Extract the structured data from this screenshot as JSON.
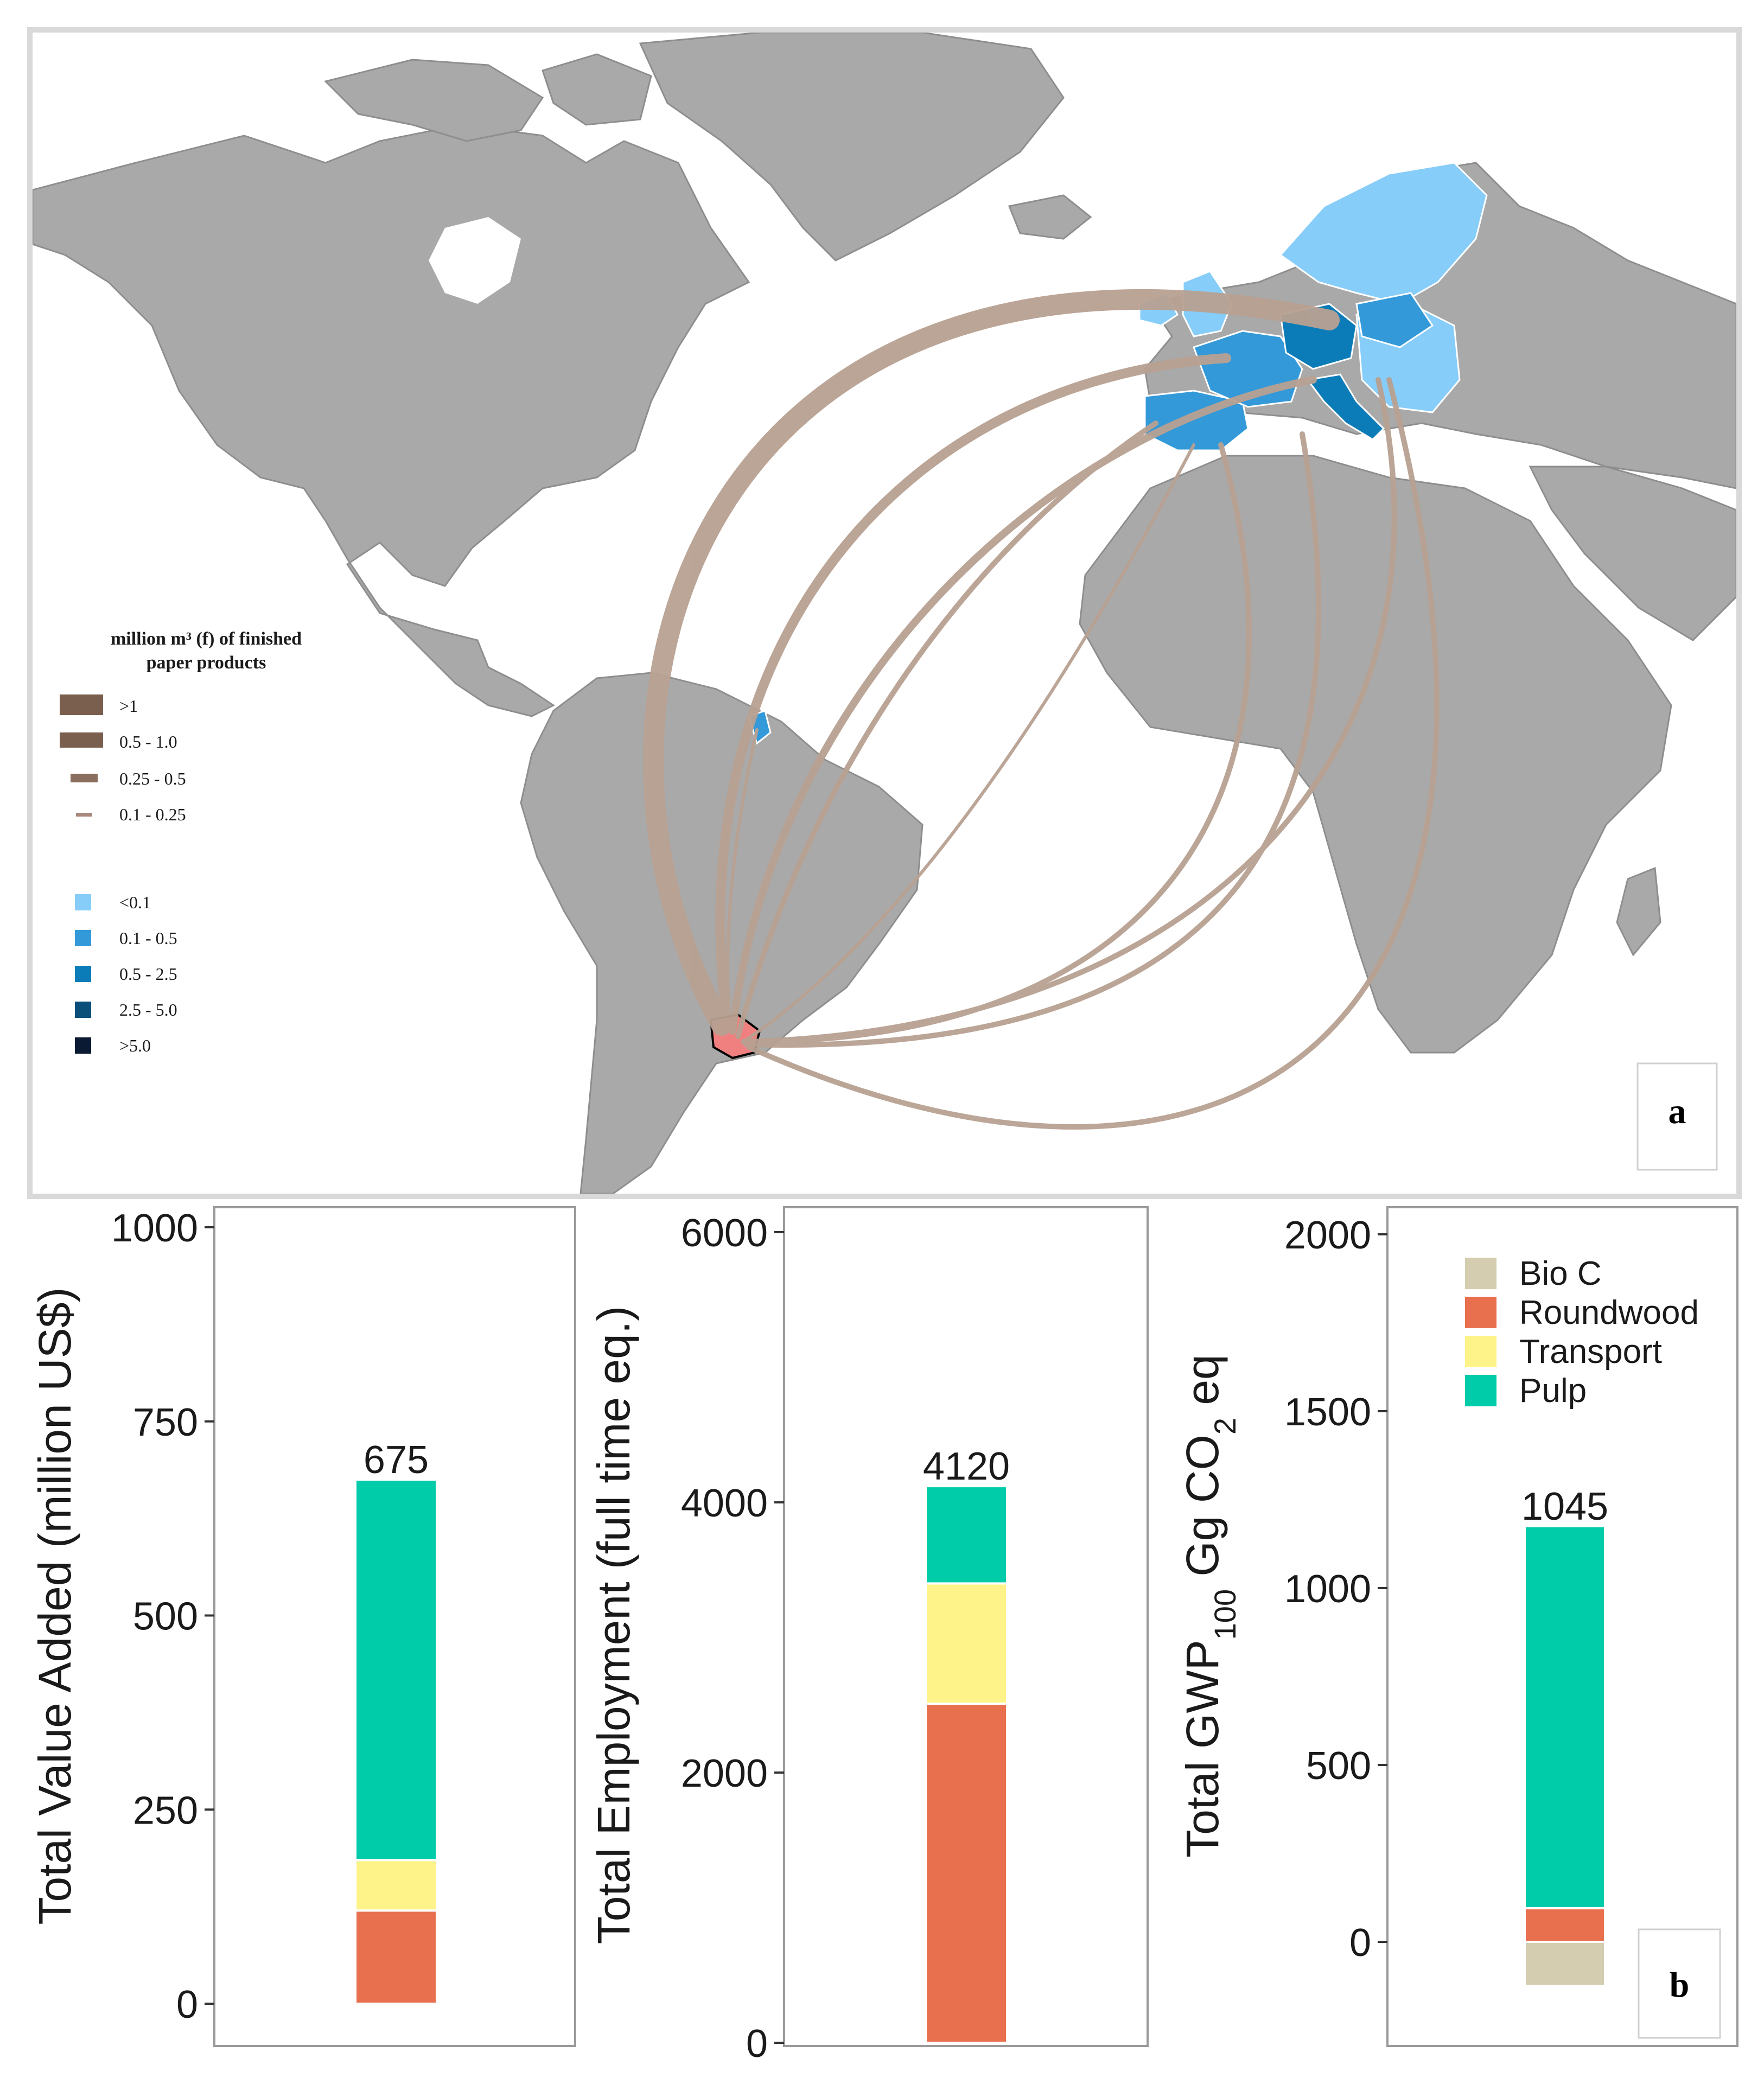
{
  "map": {
    "panel_label": "a",
    "legend_flow": {
      "title_line1": "million m³ (f) of finished",
      "title_line2": "paper products",
      "items": [
        {
          "label": ">1",
          "color": "#7a5f4f"
        },
        {
          "label": "0.5 - 1.0",
          "color": "#7a5f4f"
        },
        {
          "label": "0.25 - 0.5",
          "color": "#8a6f5f"
        },
        {
          "label": "0.1 - 0.25",
          "color": "#a8887a"
        }
      ]
    },
    "legend_fill": {
      "items": [
        {
          "label": "<0.1",
          "color": "#87cdf9"
        },
        {
          "label": "0.1 - 0.5",
          "color": "#3399d9"
        },
        {
          "label": "0.5 - 2.5",
          "color": "#0b7cb7"
        },
        {
          "label": "2.5 - 5.0",
          "color": "#0a4f7a"
        },
        {
          "label": ">5.0",
          "color": "#0a1a33"
        }
      ]
    },
    "colors": {
      "land": "#a9a9a9",
      "ocean": "#ffffff",
      "flow": "#b8a192",
      "origin": "#f08080"
    }
  },
  "panel_b_label": "b",
  "chart_data": [
    {
      "type": "bar",
      "stacked": true,
      "ylabel": "Total Value Added (million US$)",
      "ylim": [
        0,
        1000
      ],
      "yticks": [
        "0",
        "250",
        "500",
        "750",
        "1000"
      ],
      "total_label": "675",
      "series": [
        {
          "name": "Roundwood",
          "color": "#e8704e",
          "values": [
            120
          ]
        },
        {
          "name": "Transport",
          "color": "#fdf388",
          "values": [
            65
          ]
        },
        {
          "name": "Pulp",
          "color": "#00cca9",
          "values": [
            490
          ]
        }
      ]
    },
    {
      "type": "bar",
      "stacked": true,
      "ylabel": "Total Employment (full time eq.)",
      "ylim": [
        0,
        6000
      ],
      "yticks": [
        "0",
        "2000",
        "4000",
        "6000"
      ],
      "total_label": "4120",
      "series": [
        {
          "name": "Roundwood",
          "color": "#e8704e",
          "values": [
            2510
          ]
        },
        {
          "name": "Transport",
          "color": "#fdf388",
          "values": [
            890
          ]
        },
        {
          "name": "Pulp",
          "color": "#00cca9",
          "values": [
            720
          ]
        }
      ]
    },
    {
      "type": "bar",
      "stacked": true,
      "ylabel_parts": [
        "Total GWP",
        "100",
        " Gg CO",
        "2",
        " eq"
      ],
      "ylim": [
        -150,
        2000
      ],
      "yticks": [
        "0",
        "500",
        "1000",
        "1500",
        "2000"
      ],
      "total_label": "1045",
      "series": [
        {
          "name": "Bio C",
          "color": "#d5cdb0",
          "values": [
            -125
          ]
        },
        {
          "name": "Roundwood",
          "color": "#e8704e",
          "values": [
            95
          ]
        },
        {
          "name": "Transport",
          "color": "#fdf388",
          "values": [
            0
          ]
        },
        {
          "name": "Pulp",
          "color": "#00cca9",
          "values": [
            1080
          ]
        }
      ],
      "legend": {
        "position": "top-right",
        "entries": [
          {
            "label": "Bio C",
            "color": "#d5cdb0"
          },
          {
            "label": "Roundwood",
            "color": "#e8704e"
          },
          {
            "label": "Transport",
            "color": "#fdf388"
          },
          {
            "label": "Pulp",
            "color": "#00cca9"
          }
        ]
      }
    }
  ]
}
